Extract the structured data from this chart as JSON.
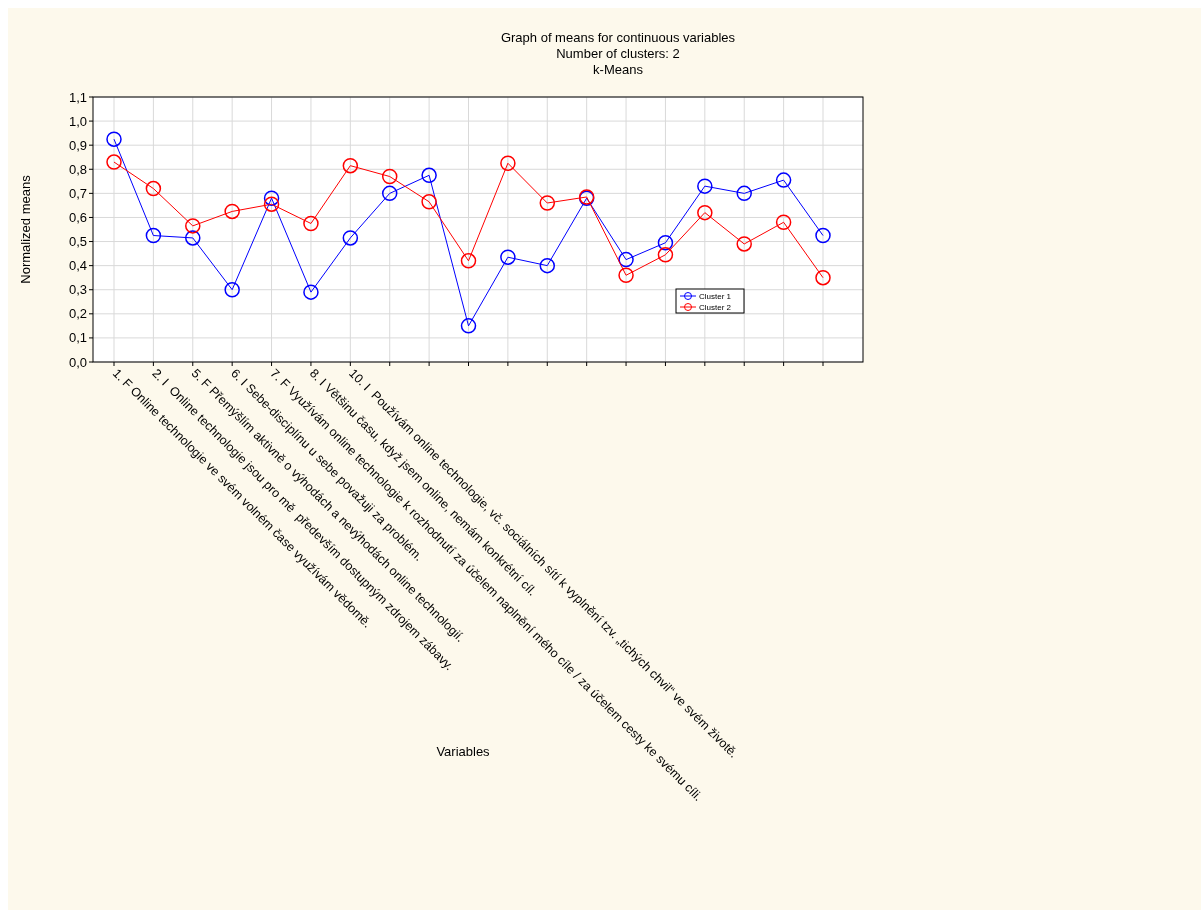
{
  "chart_data": {
    "type": "line",
    "title": "Graph of means for continuous variables",
    "subtitle": "Number of clusters: 2\nk-Means",
    "xlabel": "Variables",
    "ylabel": "Normalized means",
    "categories": [
      "1. F Online technologie ve svém volném čase využívám vědomě.",
      "2. I  Online technologie jsou pro mě  především dostupným zdrojem zábavy.",
      "5. F Přemýšlím aktivně o výhodách a nevýhodách online technologií.",
      "6. I Sebe-disciplínu u sebe považuji za problém.",
      "7. F Využívám online technologie k rozhodnutí za účelem naplnění mého cíle / za účelem cesty ke svému cíli.",
      "8. I Většinu času, když jsem online, nemám konkrétní cíl.",
      "10. I  Používám online technologie, vč. sociálních sítí k vyplnění tzv. „tichých chvil“ ve svém životě.",
      null,
      null,
      null,
      null,
      null,
      null,
      null,
      null,
      null,
      null,
      null,
      null
    ],
    "series": [
      {
        "name": "Cluster 1",
        "color": "#0000ff",
        "values": [
          0.925,
          0.525,
          0.515,
          0.3,
          0.68,
          0.29,
          0.515,
          0.7,
          0.775,
          0.15,
          0.435,
          0.4,
          0.68,
          0.425,
          0.495,
          0.73,
          0.7,
          0.755,
          0.525
        ]
      },
      {
        "name": "Cluster 2",
        "color": "#ff0000",
        "values": [
          0.83,
          0.72,
          0.565,
          0.625,
          0.655,
          0.575,
          0.815,
          0.77,
          0.665,
          0.42,
          0.825,
          0.66,
          0.685,
          0.36,
          0.445,
          0.62,
          0.49,
          0.58,
          0.35
        ]
      }
    ],
    "ylim": [
      0,
      1.1
    ],
    "yticks": [
      {
        "value": 0,
        "label": "0,0"
      },
      {
        "value": 0.1,
        "label": "0,1"
      },
      {
        "value": 0.2,
        "label": "0,2"
      },
      {
        "value": 0.3,
        "label": "0,3"
      },
      {
        "value": 0.4,
        "label": "0,4"
      },
      {
        "value": 0.5,
        "label": "0,5"
      },
      {
        "value": 0.6,
        "label": "0,6"
      },
      {
        "value": 0.7,
        "label": "0,7"
      },
      {
        "value": 0.8,
        "label": "0,8"
      },
      {
        "value": 0.9,
        "label": "0,9"
      },
      {
        "value": 1.0,
        "label": "1,0"
      },
      {
        "value": 1.1,
        "label": "1,1"
      }
    ],
    "grid": true,
    "legend": "right",
    "marker": "circle",
    "line_style": "solid"
  }
}
